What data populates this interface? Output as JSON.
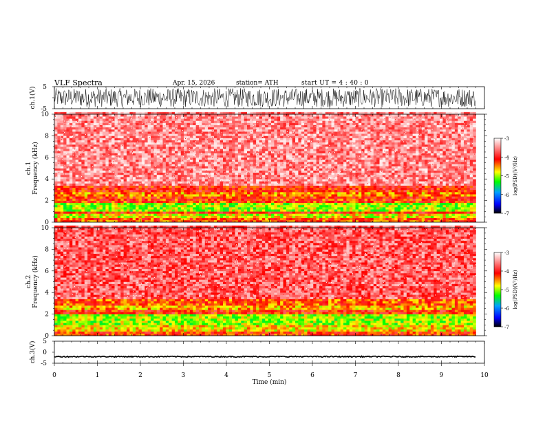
{
  "header": {
    "title": "VLF  Spectra",
    "date": "Apr. 15, 2026",
    "station": "station= ATH",
    "start_ut": "start  UT  =   4  : 40 : 0"
  },
  "chart_data": [
    {
      "type": "line",
      "name": "ch1-waveform",
      "ylabel": "ch.1(V)",
      "ylim": [
        -5,
        5
      ],
      "yticks": [
        "5",
        "-5"
      ],
      "xlim": [
        0,
        10
      ],
      "data_extent_min": 9.8,
      "signal": "broadband noise, amplitude about ±4 V"
    },
    {
      "type": "heatmap",
      "name": "ch1-spectrogram",
      "ylabel": "ch.1\nFrequency (kHz)",
      "ylim": [
        0,
        10
      ],
      "yticks": [
        "0",
        "2",
        "4",
        "6",
        "8",
        "10"
      ],
      "xlim": [
        0,
        10
      ],
      "data_extent_min": 9.8,
      "bands": [
        {
          "fmin": 0.0,
          "fmax": 0.3,
          "level": -4.3
        },
        {
          "fmin": 0.3,
          "fmax": 0.7,
          "level": -4.8
        },
        {
          "fmin": 0.7,
          "fmax": 1.0,
          "level": -4.1
        },
        {
          "fmin": 1.0,
          "fmax": 1.7,
          "level": -5.0
        },
        {
          "fmin": 1.7,
          "fmax": 2.3,
          "level": -4.2
        },
        {
          "fmin": 2.3,
          "fmax": 2.8,
          "level": -4.5
        },
        {
          "fmin": 2.8,
          "fmax": 3.3,
          "level": -4.1
        },
        {
          "fmin": 3.3,
          "fmax": 10.0,
          "level": -3.5
        }
      ],
      "colorbar": {
        "label": "log(PSD)(V²/Hz)",
        "range": [
          -7,
          -3
        ],
        "ticks": [
          "-3",
          "-4",
          "-5",
          "-6",
          "-7"
        ]
      }
    },
    {
      "type": "heatmap",
      "name": "ch2-spectrogram",
      "ylabel": "ch.2\nFrequency (kHz)",
      "ylim": [
        0,
        10
      ],
      "yticks": [
        "0",
        "2",
        "4",
        "6",
        "8",
        "10"
      ],
      "xlim": [
        0,
        10
      ],
      "data_extent_min": 9.8,
      "bands": [
        {
          "fmin": 0.0,
          "fmax": 0.3,
          "level": -4.2
        },
        {
          "fmin": 0.3,
          "fmax": 0.9,
          "level": -4.7
        },
        {
          "fmin": 0.9,
          "fmax": 1.8,
          "level": -5.0
        },
        {
          "fmin": 1.8,
          "fmax": 2.2,
          "level": -4.1
        },
        {
          "fmin": 2.2,
          "fmax": 2.8,
          "level": -4.6
        },
        {
          "fmin": 2.8,
          "fmax": 3.4,
          "level": -4.3
        },
        {
          "fmin": 3.4,
          "fmax": 10.0,
          "level": -3.7
        }
      ],
      "colorbar": {
        "label": "log(PSD)(V²/Hz)",
        "range": [
          -7,
          -3
        ],
        "ticks": [
          "-3",
          "-4",
          "-5",
          "-6",
          "-7"
        ]
      }
    },
    {
      "type": "line",
      "name": "ch3-waveform",
      "ylabel": "ch.3(V)",
      "ylim": [
        -5,
        5
      ],
      "yticks": [
        "5",
        "0",
        "-5"
      ],
      "xlim": [
        0,
        10
      ],
      "xlabel": "Time  (min)",
      "xticks": [
        "0",
        "1",
        "2",
        "3",
        "4",
        "5",
        "6",
        "7",
        "8",
        "9",
        "10"
      ],
      "data_extent_min": 9.8,
      "signal": "nearly flat trace near -2 V"
    }
  ]
}
